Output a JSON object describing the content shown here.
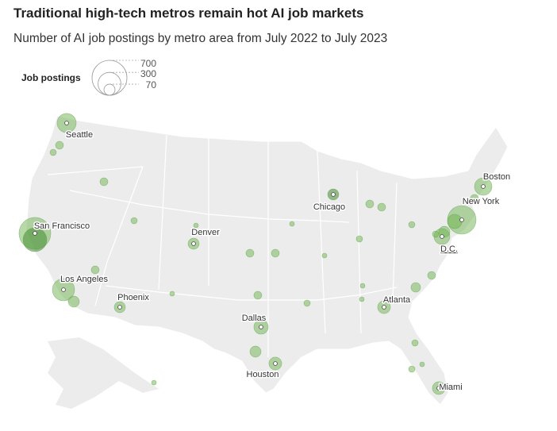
{
  "title": "Traditional high-tech metros remain hot AI job markets",
  "subtitle": "Number of AI job postings by metro area from July 2022 to July 2023",
  "legend": {
    "title": "Job postings",
    "sizes": [
      700,
      300,
      70
    ]
  },
  "bubbles": [
    {
      "label": "San Francisco",
      "value": 580
    },
    {
      "label": null,
      "value": 325
    },
    {
      "label": "Seattle",
      "value": 210
    },
    {
      "label": null,
      "value": 36
    },
    {
      "label": null,
      "value": 23
    },
    {
      "label": null,
      "value": 36
    },
    {
      "label": "Los Angeles",
      "value": 283
    },
    {
      "label": null,
      "value": 70
    },
    {
      "label": null,
      "value": 36
    },
    {
      "label": "Phoenix",
      "value": 70
    },
    {
      "label": null,
      "value": 23
    },
    {
      "label": null,
      "value": 13
    },
    {
      "label": null,
      "value": 13
    },
    {
      "label": "Denver",
      "value": 70
    },
    {
      "label": null,
      "value": 13
    },
    {
      "label": "Dallas",
      "value": 117
    },
    {
      "label": "Houston",
      "value": 93
    },
    {
      "label": null,
      "value": 70
    },
    {
      "label": null,
      "value": 36
    },
    {
      "label": null,
      "value": 36
    },
    {
      "label": null,
      "value": 36
    },
    {
      "label": null,
      "value": 13
    },
    {
      "label": null,
      "value": 23
    },
    {
      "label": null,
      "value": 13
    },
    {
      "label": "Chicago",
      "value": 70
    },
    {
      "label": null,
      "value": 36
    },
    {
      "label": null,
      "value": 36
    },
    {
      "label": null,
      "value": 23
    },
    {
      "label": null,
      "value": 23
    },
    {
      "label": null,
      "value": 13
    },
    {
      "label": null,
      "value": 13
    },
    {
      "label": null,
      "value": 52
    },
    {
      "label": "Atlanta",
      "value": 93
    },
    {
      "label": null,
      "value": 36
    },
    {
      "label": null,
      "value": 23
    },
    {
      "label": null,
      "value": 13
    },
    {
      "label": null,
      "value": 23
    },
    {
      "label": "Miami",
      "value": 93
    },
    {
      "label": "New York",
      "value": 468
    },
    {
      "label": null,
      "value": 117
    },
    {
      "label": "Boston",
      "value": 175
    },
    {
      "label": "D.C.",
      "value": 145
    },
    {
      "label": null,
      "value": 70
    },
    {
      "label": null,
      "value": 23
    },
    {
      "label": null,
      "value": 36
    }
  ]
}
